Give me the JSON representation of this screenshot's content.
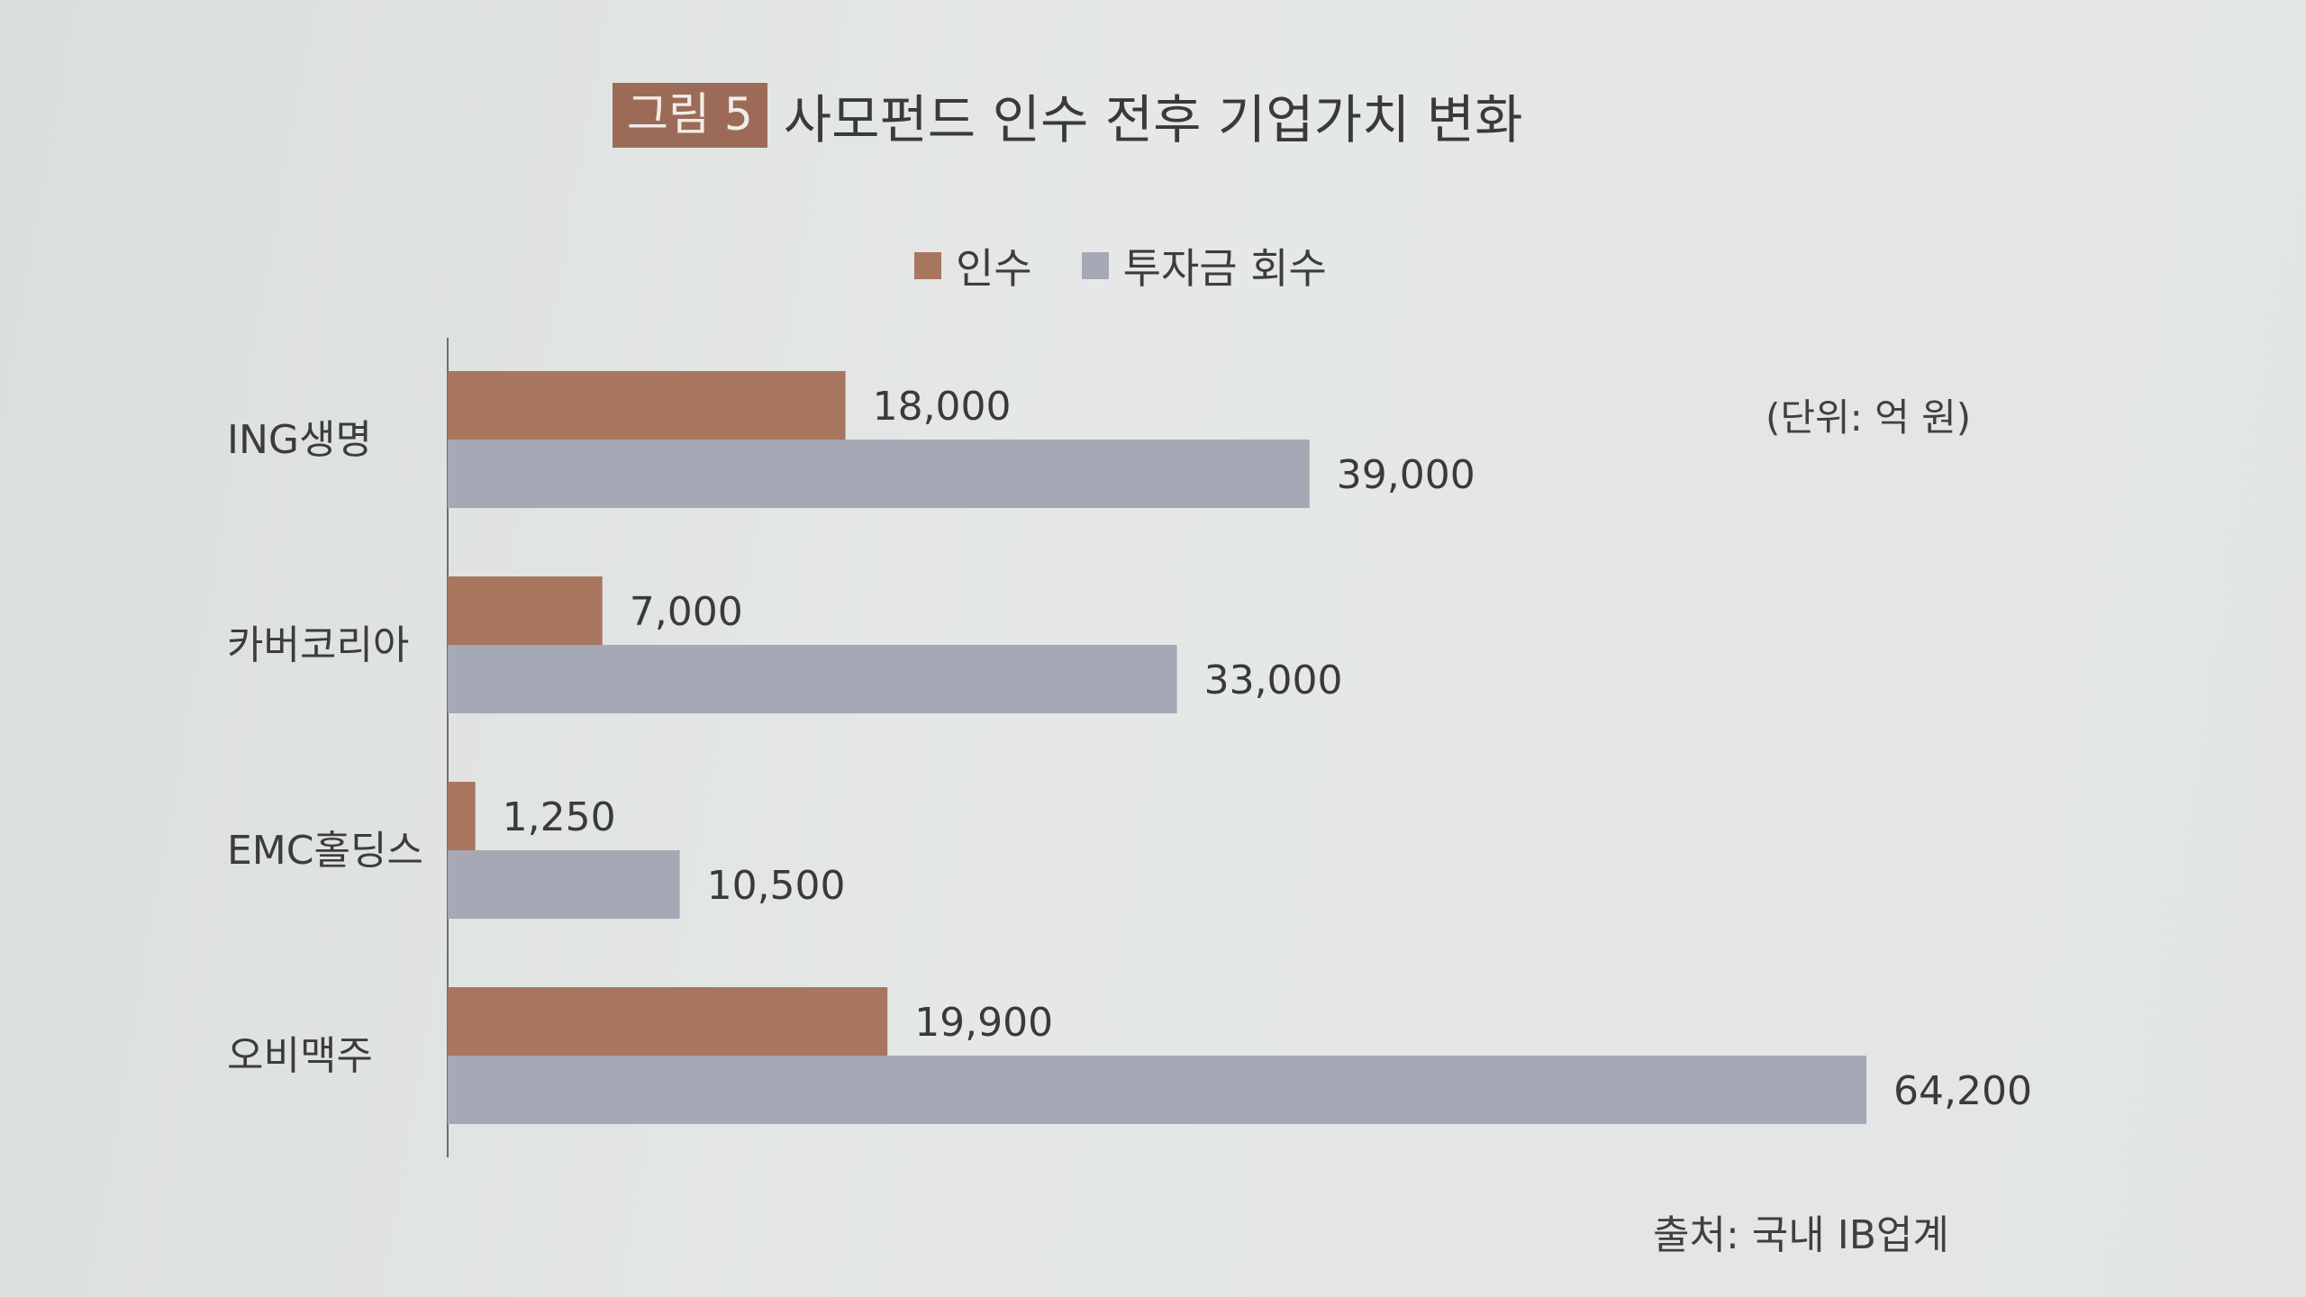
{
  "figure": {
    "badge": "그림 5",
    "title": "사모펀드 인수 전후 기업가치 변화"
  },
  "unit_note": "(단위: 억 원)",
  "source_note": "출처: 국내 IB업계",
  "colors": {
    "acquisition": "#a8765f",
    "recovery": "#a7a8b5",
    "axis": "#6d6d6d"
  },
  "chart_data": {
    "type": "bar",
    "orientation": "horizontal",
    "categories": [
      "ING생명",
      "카버코리아",
      "EMC홀딩스",
      "오비맥주"
    ],
    "series": [
      {
        "name": "인수",
        "values": [
          18000,
          7000,
          1250,
          19900
        ],
        "labels": [
          "18,000",
          "7,000",
          "1,250",
          "19,900"
        ]
      },
      {
        "name": "투자금 회수",
        "values": [
          39000,
          33000,
          10500,
          64200
        ],
        "labels": [
          "39,000",
          "33,000",
          "10,500",
          "64,200"
        ]
      }
    ],
    "xlim": [
      0,
      64200
    ],
    "grid": false,
    "legend_position": "top"
  }
}
